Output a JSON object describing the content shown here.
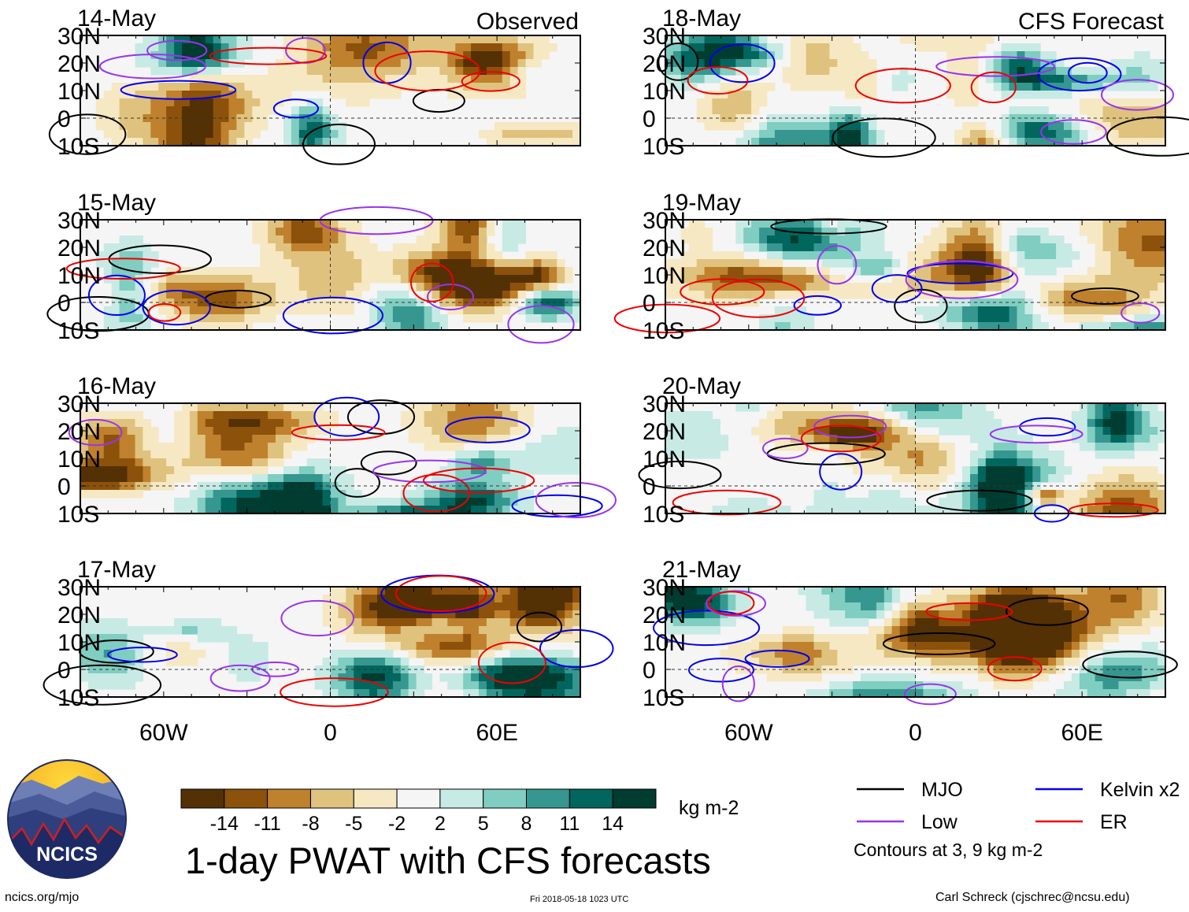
{
  "chart_data": {
    "type": "heatmap",
    "title": "1-day PWAT with CFS forecasts",
    "units": "kg m-2",
    "columns": [
      {
        "header": "Observed",
        "panels": [
          {
            "date": "14-May"
          },
          {
            "date": "15-May"
          },
          {
            "date": "16-May"
          },
          {
            "date": "17-May"
          }
        ]
      },
      {
        "header": "CFS Forecast",
        "panels": [
          {
            "date": "18-May"
          },
          {
            "date": "19-May"
          },
          {
            "date": "20-May"
          },
          {
            "date": "21-May"
          }
        ]
      }
    ],
    "lat_ticks": [
      "30N",
      "20N",
      "10N",
      "0",
      "10S"
    ],
    "lat_values": [
      30,
      20,
      10,
      0,
      -10
    ],
    "lon_ticks": [
      "60W",
      "0",
      "60E"
    ],
    "lon_values": [
      -60,
      0,
      60
    ],
    "lon_range": [
      -90,
      90
    ],
    "lat_range": [
      -10,
      30
    ],
    "colorbar": {
      "labels": [
        "-14",
        "-11",
        "-8",
        "-5",
        "-2",
        "2",
        "5",
        "8",
        "11",
        "14"
      ],
      "colors": [
        "#543005",
        "#8c510a",
        "#bf812d",
        "#dfc27d",
        "#f6e8c3",
        "#f5f5f5",
        "#c7eae5",
        "#80cdc1",
        "#35978f",
        "#01665e",
        "#003c30"
      ]
    },
    "contour_note": "Contours at 3, 9 kg m-2",
    "legend": [
      {
        "label": "MJO",
        "color": "#000000"
      },
      {
        "label": "Kelvin x2",
        "color": "#0000ee"
      },
      {
        "label": "Low",
        "color": "#9933ee"
      },
      {
        "label": "ER",
        "color": "#ee0000"
      }
    ]
  },
  "footer": {
    "logo_text": "NCICS",
    "url": "ncics.org/mjo",
    "timestamp": "Fri 2018-05-18 1023 UTC",
    "author": "Carl Schreck (cjschrec@ncsu.edu)"
  }
}
